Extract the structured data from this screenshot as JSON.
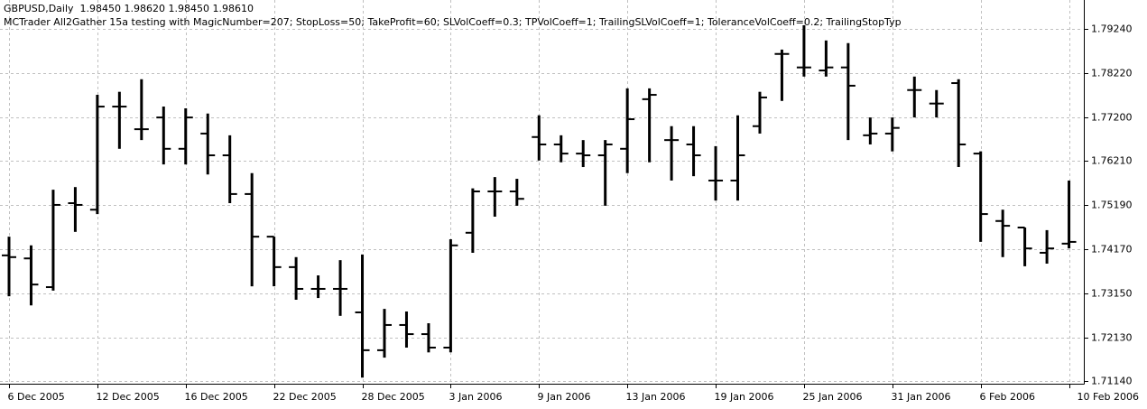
{
  "chart_data": {
    "type": "ohlc",
    "title": "GBPUSD,Daily  1.98450 1.98620 1.98450 1.98610",
    "subtitle": "MCTrader All2Gather 15a testing with MagicNumber=207; StopLoss=50; TakeProfit=60; SLVolCoeff=0.3; TPVolCoeff=1; TrailingSLVolCoeff=1; ToleranceVolCoeff=0.2; TrailingStopTyp",
    "color": "#000000",
    "grid": true,
    "categories": [
      "6 Dec 2005",
      null,
      null,
      null,
      "12 Dec 2005",
      null,
      null,
      null,
      "16 Dec 2005",
      null,
      null,
      null,
      "22 Dec 2005",
      null,
      null,
      null,
      "28 Dec 2005",
      null,
      null,
      null,
      "3 Jan 2006",
      null,
      null,
      null,
      "9 Jan 2006",
      null,
      null,
      null,
      "13 Jan 2006",
      null,
      null,
      null,
      "19 Jan 2006",
      null,
      null,
      null,
      "25 Jan 2006",
      null,
      null,
      null,
      "31 Jan 2006",
      null,
      null,
      null,
      "6 Feb 2006",
      null,
      null,
      null,
      "10 Feb 2006"
    ],
    "open": [
      1.7403,
      1.7396,
      1.733,
      1.7523,
      1.7508,
      1.7745,
      1.7693,
      1.772,
      1.7648,
      1.7683,
      1.7633,
      1.7544,
      1.7446,
      1.7376,
      1.7326,
      1.7326,
      1.7272,
      1.7185,
      1.7243,
      1.7222,
      1.7191,
      1.7455,
      1.755,
      1.755,
      1.7675,
      1.7658,
      1.7637,
      1.7633,
      1.7648,
      1.7762,
      1.7668,
      1.7658,
      1.7575,
      1.7575,
      1.77,
      1.7866,
      1.7835,
      1.7828,
      1.7835,
      1.7679,
      1.7683,
      1.7783,
      1.7752,
      1.7799,
      1.7637,
      1.7482,
      1.7467,
      1.7409,
      1.743
    ],
    "high": [
      1.7446,
      1.7426,
      1.7554,
      1.756,
      1.7772,
      1.7779,
      1.7808,
      1.7745,
      1.7741,
      1.7729,
      1.7679,
      1.7592,
      1.7446,
      1.7399,
      1.7357,
      1.7392,
      1.7405,
      1.728,
      1.7274,
      1.7247,
      1.744,
      1.7557,
      1.7583,
      1.7579,
      1.7725,
      1.7679,
      1.7668,
      1.7668,
      1.7787,
      1.7787,
      1.77,
      1.77,
      1.7654,
      1.7725,
      1.7779,
      1.7876,
      1.7932,
      1.7897,
      1.7891,
      1.772,
      1.772,
      1.7814,
      1.7783,
      1.7808,
      1.7642,
      1.7508,
      1.7467,
      1.7461,
      1.7575
    ],
    "low": [
      1.7309,
      1.7288,
      1.7322,
      1.7457,
      1.7498,
      1.7648,
      1.7668,
      1.7612,
      1.7612,
      1.7589,
      1.7523,
      1.7332,
      1.7332,
      1.7301,
      1.7305,
      1.7264,
      1.7122,
      1.7168,
      1.7191,
      1.718,
      1.718,
      1.7409,
      1.7492,
      1.7517,
      1.7621,
      1.7617,
      1.7606,
      1.7517,
      1.7592,
      1.7617,
      1.7575,
      1.7585,
      1.7529,
      1.7529,
      1.7683,
      1.7758,
      1.7814,
      1.7814,
      1.7668,
      1.7658,
      1.7642,
      1.772,
      1.772,
      1.7606,
      1.7434,
      1.7399,
      1.7378,
      1.7384,
      1.7419
    ],
    "close": [
      1.7399,
      1.7336,
      1.7519,
      1.7519,
      1.7745,
      1.7745,
      1.7693,
      1.7648,
      1.772,
      1.7633,
      1.7544,
      1.7446,
      1.7376,
      1.7326,
      1.7326,
      1.7326,
      1.7185,
      1.7243,
      1.7222,
      1.7191,
      1.7426,
      1.755,
      1.755,
      1.7533,
      1.7658,
      1.7637,
      1.7633,
      1.7658,
      1.7716,
      1.7772,
      1.7668,
      1.7633,
      1.7575,
      1.7633,
      1.7766,
      1.7866,
      1.7835,
      1.7835,
      1.7793,
      1.7683,
      1.7696,
      1.7783,
      1.7752,
      1.7658,
      1.7498,
      1.7471,
      1.7419,
      1.7419,
      1.7434
    ],
    "ylim": [
      1.7108,
      1.799
    ],
    "yticks": [
      {
        "value": 1.7114,
        "label": "1.71140"
      },
      {
        "value": 1.7213,
        "label": "1.72130"
      },
      {
        "value": 1.7315,
        "label": "1.73150"
      },
      {
        "value": 1.7417,
        "label": "1.74170"
      },
      {
        "value": 1.7519,
        "label": "1.75190"
      },
      {
        "value": 1.7621,
        "label": "1.76210"
      },
      {
        "value": 1.772,
        "label": "1.77200"
      },
      {
        "value": 1.7822,
        "label": "1.78220"
      },
      {
        "value": 1.7924,
        "label": "1.79240"
      }
    ]
  }
}
